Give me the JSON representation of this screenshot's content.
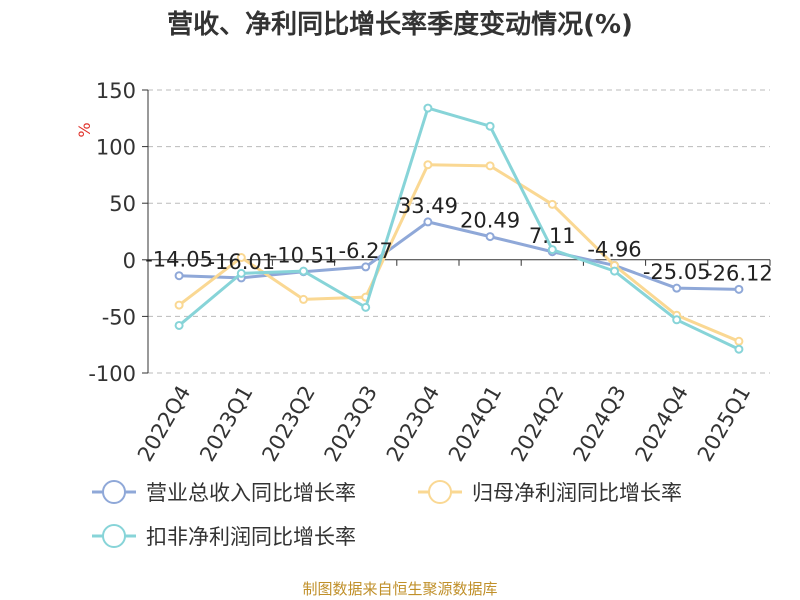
{
  "title": "营收、净利同比增长率季度变动情况(%)",
  "source": "制图数据来自恒生聚源数据库",
  "chart_data": {
    "type": "line",
    "title": "营收、净利同比增长率季度变动情况(%)",
    "ylabel": "%",
    "ylim": [
      -100,
      150
    ],
    "yticks": [
      150,
      100,
      50,
      0,
      -50,
      -100
    ],
    "grid": true,
    "legend_position": "bottom",
    "categories": [
      "2022Q4",
      "2023Q1",
      "2023Q2",
      "2023Q3",
      "2023Q4",
      "2024Q1",
      "2024Q2",
      "2024Q3",
      "2024Q4",
      "2025Q1"
    ],
    "series": [
      {
        "name": "营业总收入同比增长率",
        "color": "#8fa8d8",
        "values": [
          -14.05,
          -16.01,
          -10.51,
          -6.27,
          33.49,
          20.49,
          7.11,
          -4.96,
          -25.05,
          -26.12
        ],
        "labels": [
          "-14.05",
          "-16.01",
          "-10.51",
          "-6.27",
          "33.49",
          "20.49",
          "7.11",
          "-4.96",
          "-25.05",
          "-26.12"
        ]
      },
      {
        "name": "归母净利润同比增长率",
        "color": "#fad893",
        "values": [
          -40,
          2,
          -35,
          -33,
          84,
          83,
          49,
          -5,
          -49,
          -72
        ]
      },
      {
        "name": "扣非净利润同比增长率",
        "color": "#87d4d8",
        "values": [
          -58,
          -12,
          -10,
          -42,
          134,
          118,
          9,
          -10,
          -53,
          -79
        ]
      }
    ]
  }
}
